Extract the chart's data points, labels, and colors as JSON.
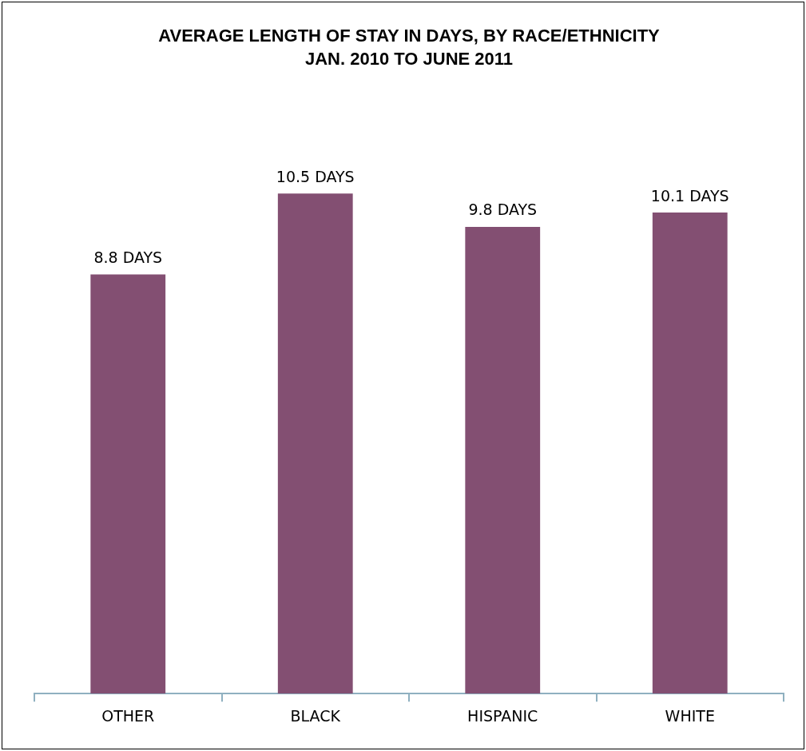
{
  "chart_data": {
    "type": "bar",
    "title": "AVERAGE LENGTH OF STAY IN DAYS, BY RACE/ETHNICITY",
    "subtitle": "JAN. 2010 TO JUNE 2011",
    "categories": [
      "OTHER",
      "BLACK",
      "HISPANIC",
      "WHITE"
    ],
    "values": [
      8.8,
      10.5,
      9.8,
      10.1
    ],
    "value_labels": [
      "8.8 DAYS",
      "10.5 DAYS",
      "9.8 DAYS",
      "10.1 DAYS"
    ],
    "color": "#834f72",
    "tick_labels": "x",
    "grid": false,
    "legend": false
  }
}
